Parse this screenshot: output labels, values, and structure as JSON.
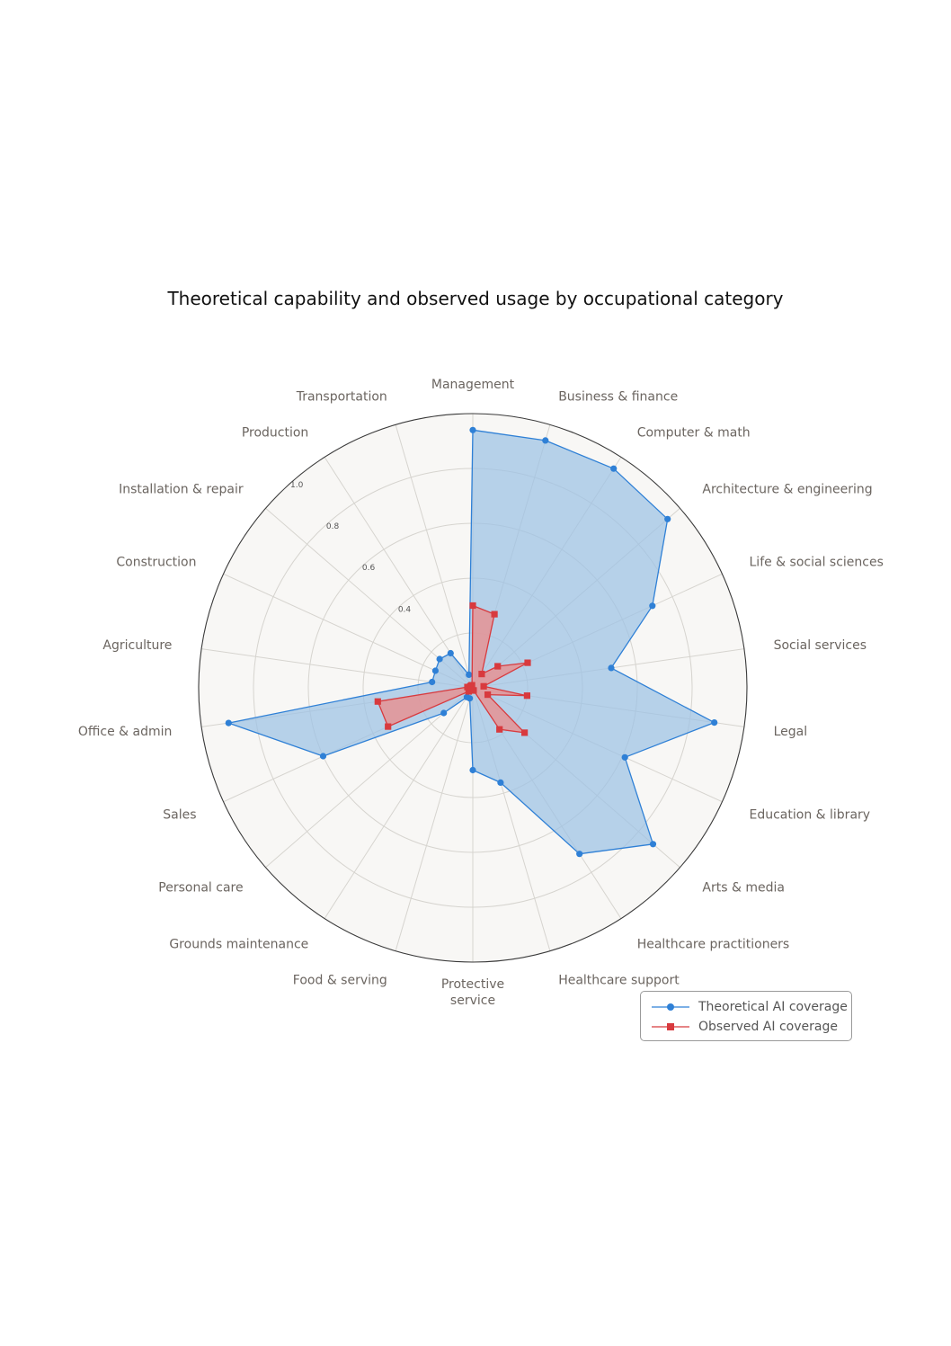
{
  "colors": {
    "theoretical": "#2f80d6",
    "theoretical_fill": "#9cc2e5",
    "observed": "#d83a3e",
    "observed_fill": "#e88f8f",
    "background": "#f8f7f5",
    "grid": "#d6d4cf"
  },
  "chart_data": {
    "type": "radar",
    "title": "Theoretical capability and observed usage by occupational category",
    "categories": [
      "Management",
      "Business & finance",
      "Computer & math",
      "Architecture & engineering",
      "Life & social sciences",
      "Social services",
      "Legal",
      "Education & library",
      "Arts & media",
      "Healthcare practitioners",
      "Healthcare support",
      "Protective\nservice",
      "Food & serving",
      "Grounds maintenance",
      "Personal care",
      "Sales",
      "Office & admin",
      "Agriculture",
      "Construction",
      "Installation & repair",
      "Production",
      "Transportation"
    ],
    "r_ticks": [
      0.4,
      0.6,
      0.8,
      1.0
    ],
    "r_tick_labels": [
      "0.4",
      "0.6",
      "0.8",
      "1.0"
    ],
    "rlim": [
      0,
      1.0
    ],
    "series": [
      {
        "name": "Theoretical AI coverage",
        "marker": "circle",
        "values": [
          0.94,
          0.94,
          0.95,
          0.94,
          0.72,
          0.51,
          0.89,
          0.61,
          0.87,
          0.72,
          0.36,
          0.3,
          0.04,
          0.04,
          0.14,
          0.6,
          0.9,
          0.15,
          0.15,
          0.16,
          0.15,
          0.05
        ]
      },
      {
        "name": "Observed AI coverage",
        "marker": "square",
        "values": [
          0.3,
          0.28,
          0.06,
          0.12,
          0.22,
          0.04,
          0.2,
          0.06,
          0.25,
          0.18,
          0.01,
          0.01,
          0.01,
          0.01,
          0.02,
          0.34,
          0.35,
          0.02,
          0.01,
          0.01,
          0.01,
          0.01
        ]
      }
    ],
    "grid": true,
    "legend_position": "bottom-right"
  }
}
